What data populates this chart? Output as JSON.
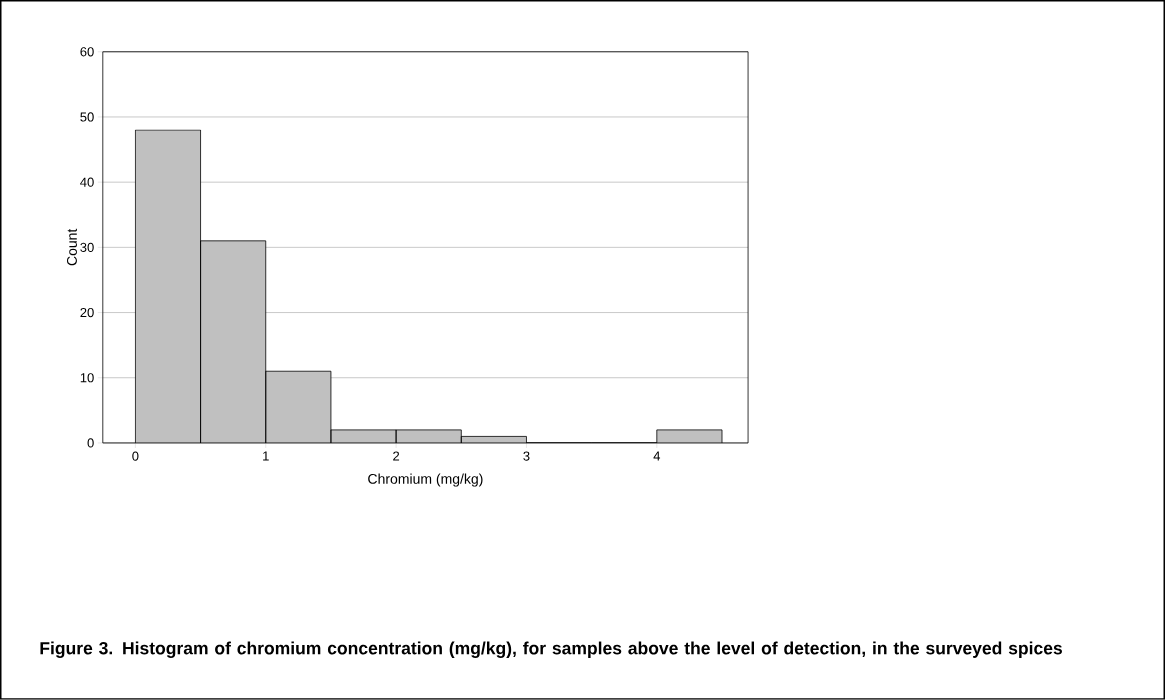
{
  "chart_data": {
    "type": "histogram",
    "xlabel": "Chromium (mg/kg)",
    "ylabel": "Count",
    "bins": [
      0,
      0.5,
      1,
      1.5,
      2,
      2.5,
      3,
      3.5,
      4,
      4.5
    ],
    "values": [
      48,
      31,
      11,
      2,
      2,
      1,
      0,
      0,
      2
    ],
    "color": "#c0c0c0",
    "xlim": [
      -0.25,
      4.7
    ],
    "ylim": [
      0,
      60
    ],
    "xticks": [
      0,
      1,
      2,
      3,
      4
    ],
    "yticks": [
      0,
      10,
      20,
      30,
      40,
      50,
      60
    ],
    "grid": "y",
    "annotations": [
      "**Figure 3. Histogram of chromium concentration (mg/kg), for samples above the level of detection, in the surveyed spices**"
    ]
  }
}
